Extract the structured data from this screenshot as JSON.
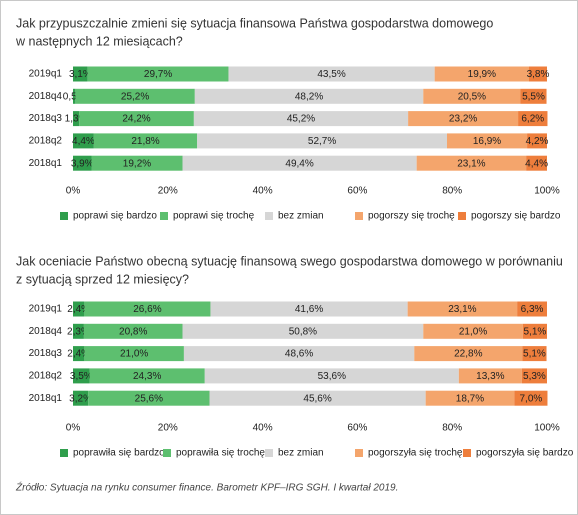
{
  "chart_data": [
    {
      "type": "stacked-bar",
      "orientation": "horizontal",
      "title": [
        "Jak przypuszczalnie zmieni się sytuacja finansowa Państwa gospodarstwa domowego",
        "w następnych 12 miesiącach?"
      ],
      "categories": [
        "2019q1",
        "2018q4",
        "2018q3",
        "2018q2",
        "2018q1"
      ],
      "series": [
        {
          "name": "poprawi się bardzo",
          "color": "#2f9e4c",
          "values": [
            3.1,
            0.5,
            1.3,
            4.4,
            3.9
          ],
          "value_labels": [
            "3,1%",
            "0,5%",
            "1,3%",
            "4,4%",
            "3,9%"
          ]
        },
        {
          "name": "poprawi się trochę",
          "color": "#5dbf6f",
          "values": [
            29.7,
            25.2,
            24.2,
            21.8,
            19.2
          ],
          "value_labels": [
            "29,7%",
            "25,2%",
            "24,2%",
            "21,8%",
            "19,2%"
          ]
        },
        {
          "name": "bez zmian",
          "color": "#d6d6d6",
          "values": [
            43.5,
            48.2,
            45.2,
            52.7,
            49.4
          ],
          "value_labels": [
            "43,5%",
            "48,2%",
            "45,2%",
            "52,7%",
            "49,4%"
          ]
        },
        {
          "name": "pogorszy się trochę",
          "color": "#f4a56c",
          "values": [
            19.9,
            20.5,
            23.2,
            16.9,
            23.1
          ],
          "value_labels": [
            "19,9%",
            "20,5%",
            "23,2%",
            "16,9%",
            "23,1%"
          ]
        },
        {
          "name": "pogorszy się bardzo",
          "color": "#ee7e3c",
          "values": [
            3.8,
            5.5,
            6.2,
            4.2,
            4.4
          ],
          "value_labels": [
            "3,8%",
            "5,5%",
            "6,2%",
            "4,2%",
            "4,4%"
          ]
        }
      ],
      "xlim": [
        0,
        100
      ],
      "xticks": [
        {
          "value": 0,
          "label": "0%"
        },
        {
          "value": 20,
          "label": "20%"
        },
        {
          "value": 40,
          "label": "40%"
        },
        {
          "value": 60,
          "label": "60%"
        },
        {
          "value": 80,
          "label": "80%"
        },
        {
          "value": 100,
          "label": "100%"
        }
      ]
    },
    {
      "type": "stacked-bar",
      "orientation": "horizontal",
      "title": [
        "Jak oceniacie Państwo obecną sytuację finansową swego gospodarstwa domowego w porównaniu",
        "z sytuacją sprzed 12 miesięcy?"
      ],
      "categories": [
        "2019q1",
        "2018q4",
        "2018q3",
        "2018q2",
        "2018q1"
      ],
      "series": [
        {
          "name": "poprawiła się bardzo",
          "color": "#2f9e4c",
          "values": [
            2.4,
            2.3,
            2.4,
            3.5,
            3.2
          ],
          "value_labels": [
            "2,4%",
            "2,3%",
            "2,4%",
            "3,5%",
            "3,2%"
          ]
        },
        {
          "name": "poprawiła się trochę",
          "color": "#5dbf6f",
          "values": [
            26.6,
            20.8,
            21.0,
            24.3,
            25.6
          ],
          "value_labels": [
            "26,6%",
            "20,8%",
            "21,0%",
            "24,3%",
            "25,6%"
          ]
        },
        {
          "name": "bez zmian",
          "color": "#d6d6d6",
          "values": [
            41.6,
            50.8,
            48.6,
            53.6,
            45.6
          ],
          "value_labels": [
            "41,6%",
            "50,8%",
            "48,6%",
            "53,6%",
            "45,6%"
          ]
        },
        {
          "name": "pogorszyła się trochę",
          "color": "#f4a56c",
          "values": [
            23.1,
            21.0,
            22.8,
            13.3,
            18.7
          ],
          "value_labels": [
            "23,1%",
            "21,0%",
            "22,8%",
            "13,3%",
            "18,7%"
          ]
        },
        {
          "name": "pogorszyła się bardzo",
          "color": "#ee7e3c",
          "values": [
            6.3,
            5.1,
            5.1,
            5.3,
            7.0
          ],
          "value_labels": [
            "6,3%",
            "5,1%",
            "5,1%",
            "5,3%",
            "7,0%"
          ]
        }
      ],
      "xlim": [
        0,
        100
      ],
      "xticks": [
        {
          "value": 0,
          "label": "0%"
        },
        {
          "value": 20,
          "label": "20%"
        },
        {
          "value": 40,
          "label": "40%"
        },
        {
          "value": 60,
          "label": "60%"
        },
        {
          "value": 80,
          "label": "80%"
        },
        {
          "value": 100,
          "label": "100%"
        }
      ]
    }
  ],
  "source": "Źródło: Sytuacja na rynku consumer finance. Barometr KPF–IRG SGH. I kwartał 2019."
}
